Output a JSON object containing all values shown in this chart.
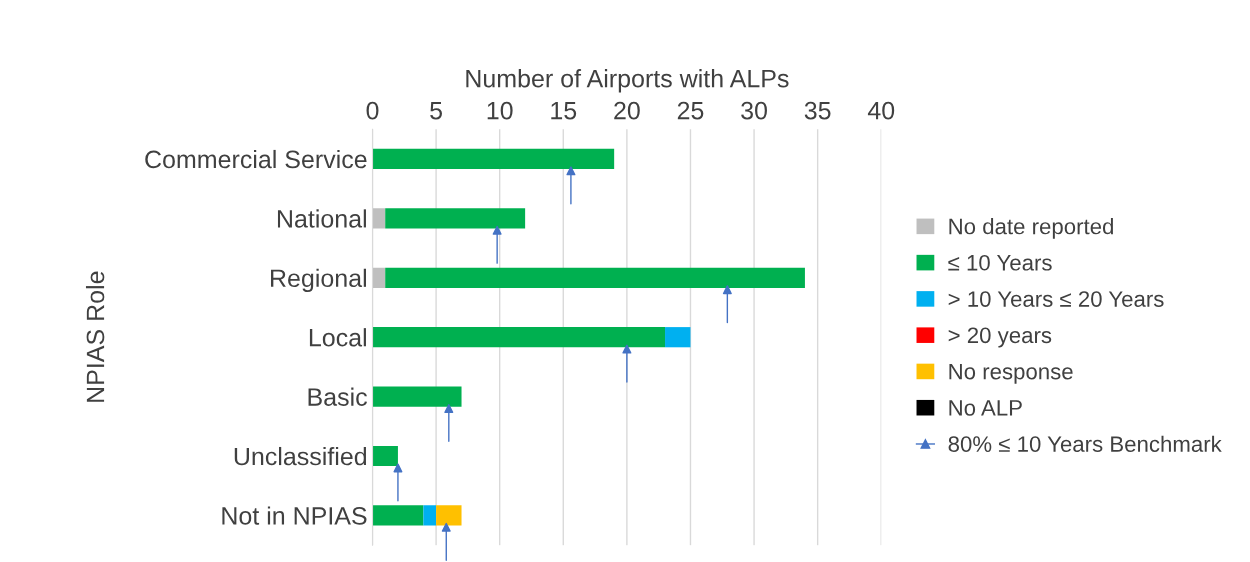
{
  "chart_data": {
    "type": "bar",
    "orientation": "horizontal",
    "stacked": true,
    "xlabel": "Number of Airports with ALPs",
    "ylabel": "NPIAS Role",
    "categories": [
      "Commercial Service",
      "National",
      "Regional",
      "Local",
      "Basic",
      "Unclassified",
      "Not in NPIAS"
    ],
    "series": [
      {
        "name": "No date reported",
        "color": "#bfbfbf",
        "values": [
          0,
          1,
          1,
          0,
          0,
          0,
          0
        ]
      },
      {
        "name": "≤ 10 Years",
        "color": "#00b050",
        "values": [
          19,
          11,
          33,
          23,
          7,
          2,
          4
        ]
      },
      {
        "name": "> 10 Years ≤ 20 Years",
        "color": "#00b0f0",
        "values": [
          0,
          0,
          0,
          2,
          0,
          0,
          1
        ]
      },
      {
        "name": "> 20 years",
        "color": "#ff0000",
        "values": [
          0,
          0,
          0,
          0,
          0,
          0,
          0
        ]
      },
      {
        "name": "No response",
        "color": "#ffc000",
        "values": [
          0,
          0,
          0,
          0,
          0,
          0,
          2
        ]
      },
      {
        "name": "No ALP",
        "color": "#000000",
        "values": [
          0,
          0,
          0,
          0,
          0,
          0,
          0
        ]
      },
      {
        "name": "80% ≤ 10 Years Benchmark",
        "type": "scatter",
        "marker": "triangle",
        "color": "#4472c4",
        "values": [
          15.6,
          9.8,
          27.9,
          20,
          6,
          2,
          5.8
        ]
      }
    ],
    "xlim": [
      0,
      40
    ],
    "xticks": [
      0,
      5,
      10,
      15,
      20,
      25,
      30,
      35,
      40
    ],
    "grid": "x",
    "legend": "right"
  }
}
